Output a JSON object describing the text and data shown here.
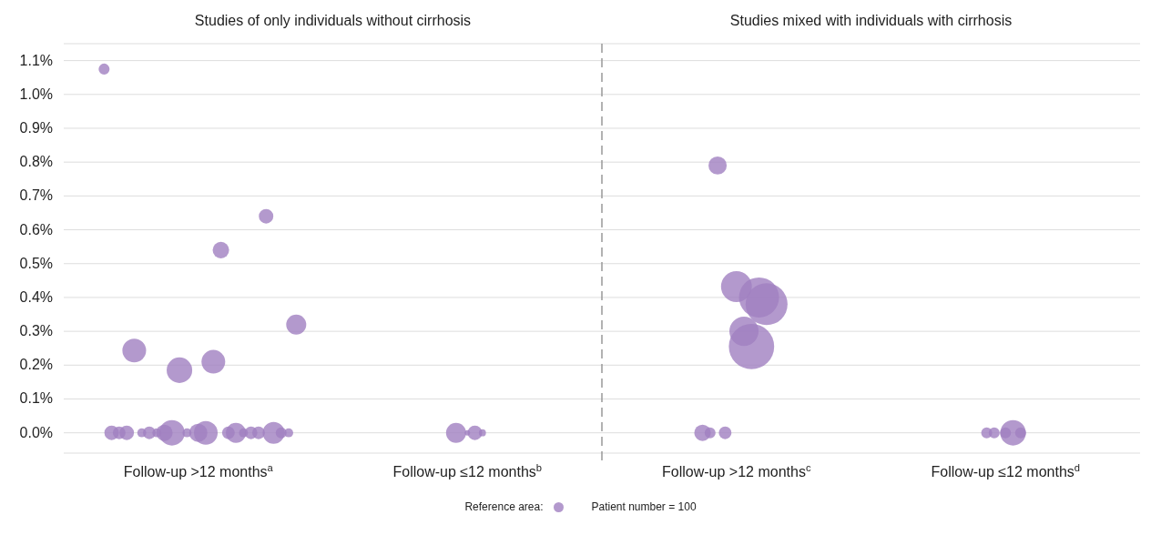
{
  "chart_data": {
    "type": "bubble",
    "annotations": [
      "Studies of only individuals without cirrhosis",
      "Studies mixed with individuals with cirrhosis"
    ],
    "legend_title": "Reference area:",
    "size_legend": [
      {
        "value": 100,
        "label": "Patient number = 100"
      }
    ],
    "categories": [
      "Follow-up >12 months$^{a}$",
      "Follow-up ≤12 months$^{b}$",
      "Follow-up >12 months$^{c}$",
      "Follow-up ≤12 months$^{d}$"
    ],
    "ylim": [
      -0.06,
      1.15
    ],
    "yticks": [
      {
        "value": 0,
        "label": "0.0%"
      },
      {
        "value": 0.1,
        "label": "0.1%"
      },
      {
        "value": 0.2,
        "label": "0.2%"
      },
      {
        "value": 0.3,
        "label": "0.3%"
      },
      {
        "value": 0.4,
        "label": "0.4%"
      },
      {
        "value": 0.5,
        "label": "0.5%"
      },
      {
        "value": 0.6,
        "label": "0.6%"
      },
      {
        "value": 0.7,
        "label": "0.7%"
      },
      {
        "value": 0.8,
        "label": "0.8%"
      },
      {
        "value": 0.9,
        "label": "0.9%"
      },
      {
        "value": 1.0,
        "label": "1.0%"
      },
      {
        "value": 1.1,
        "label": "1.1%"
      }
    ],
    "grid": "y",
    "series": [
      {
        "color": "#a080c0",
        "x": [
          "Follow-up >12 months$^{a}$",
          "Follow-up >12 months$^{a}$",
          "Follow-up >12 months$^{a}$",
          "Follow-up >12 months$^{a}$",
          "Follow-up >12 months$^{a}$",
          "Follow-up >12 months$^{a}$",
          "Follow-up >12 months$^{a}$",
          "Follow-up >12 months$^{a}$",
          "Follow-up >12 months$^{a}$",
          "Follow-up >12 months$^{a}$",
          "Follow-up >12 months$^{a}$",
          "Follow-up >12 months$^{a}$",
          "Follow-up >12 months$^{a}$",
          "Follow-up >12 months$^{a}$",
          "Follow-up >12 months$^{a}$",
          "Follow-up >12 months$^{a}$",
          "Follow-up >12 months$^{a}$",
          "Follow-up >12 months$^{a}$",
          "Follow-up >12 months$^{a}$",
          "Follow-up >12 months$^{a}$",
          "Follow-up >12 months$^{a}$",
          "Follow-up >12 months$^{a}$",
          "Follow-up >12 months$^{a}$",
          "Follow-up >12 months$^{a}$",
          "Follow-up >12 months$^{a}$",
          "Follow-up >12 months$^{a}$",
          "Follow-up ≤12 months$^{b}$",
          "Follow-up ≤12 months$^{b}$",
          "Follow-up ≤12 months$^{b}$",
          "Follow-up ≤12 months$^{b}$",
          "Follow-up >12 months$^{c}$",
          "Follow-up >12 months$^{c}$",
          "Follow-up >12 months$^{c}$",
          "Follow-up >12 months$^{c}$",
          "Follow-up >12 months$^{c}$",
          "Follow-up >12 months$^{c}$",
          "Follow-up >12 months$^{c}$",
          "Follow-up >12 months$^{c}$",
          "Follow-up >12 months$^{c}$",
          "Follow-up ≤12 months$^{d}$",
          "Follow-up ≤12 months$^{d}$",
          "Follow-up ≤12 months$^{d}$",
          "Follow-up ≤12 months$^{d}$",
          "Follow-up ≤12 months$^{d}$"
        ],
        "values": [
          0,
          0,
          0,
          0.21,
          0.185,
          0.54,
          0,
          0,
          0,
          0,
          0,
          0,
          0,
          0,
          0,
          0,
          0.243,
          0.64,
          0,
          0,
          0,
          0,
          0,
          0,
          1.075,
          0.32,
          0,
          0,
          0,
          0,
          0.432,
          0.3,
          0,
          0.255,
          0.79,
          0.4,
          0,
          0.38,
          0,
          0,
          0,
          0,
          0,
          0
        ],
        "sizes": [
          330,
          560,
          80,
          560,
          650,
          270,
          650,
          160,
          270,
          400,
          80,
          80,
          160,
          160,
          80,
          160,
          560,
          210,
          210,
          480,
          160,
          120,
          210,
          80,
          120,
          400,
          30,
          210,
          400,
          50,
          950,
          850,
          160,
          2050,
          330,
          1600,
          120,
          1750,
          270,
          120,
          650,
          120,
          120,
          120
        ]
      }
    ]
  }
}
